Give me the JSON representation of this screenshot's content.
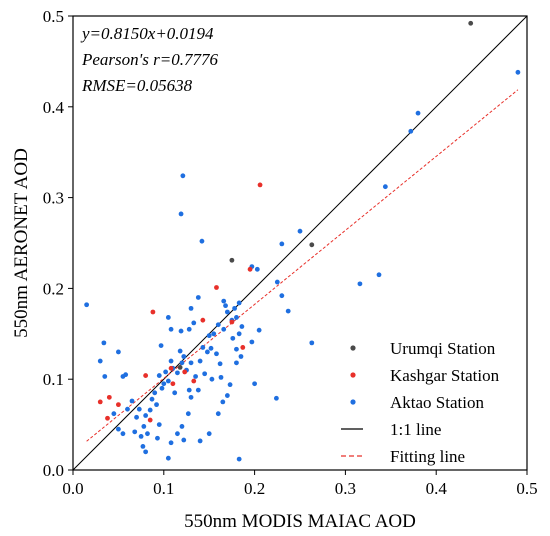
{
  "chart_data": {
    "type": "scatter",
    "xlabel": "550nm MODIS MAIAC AOD",
    "ylabel": "550nm AERONET  AOD",
    "xlim": [
      0,
      0.5
    ],
    "ylim": [
      0,
      0.5
    ],
    "xticks": [
      "0.0",
      "0.1",
      "0.2",
      "0.3",
      "0.4",
      "0.5"
    ],
    "yticks": [
      "0.0",
      "0.1",
      "0.2",
      "0.3",
      "0.4",
      "0.5"
    ],
    "grid": false,
    "legend_position": "bottom-right",
    "annotations": [
      "y=0.8150x+0.0194",
      "Pearson's r=0.7776",
      "RMSE=0.05638"
    ],
    "fit": {
      "slope": 0.815,
      "intercept": 0.0194,
      "x_range": [
        0.015,
        0.49
      ],
      "color": "#e8302a",
      "label": "Fitting line"
    },
    "one_to_one": {
      "label": "1:1 line",
      "color": "#000000"
    },
    "series": [
      {
        "name": "Urumqi Station",
        "color": "#4a4a4a",
        "points": [
          [
            0.438,
            0.492
          ],
          [
            0.175,
            0.231
          ],
          [
            0.263,
            0.248
          ],
          [
            0.118,
            0.113
          ]
        ]
      },
      {
        "name": "Kashgar Station",
        "color": "#e8302a",
        "points": [
          [
            0.206,
            0.314
          ],
          [
            0.195,
            0.221
          ],
          [
            0.158,
            0.201
          ],
          [
            0.175,
            0.163
          ],
          [
            0.143,
            0.165
          ],
          [
            0.088,
            0.174
          ],
          [
            0.187,
            0.135
          ],
          [
            0.108,
            0.112
          ],
          [
            0.123,
            0.108
          ],
          [
            0.08,
            0.104
          ],
          [
            0.03,
            0.075
          ],
          [
            0.04,
            0.08
          ],
          [
            0.05,
            0.072
          ],
          [
            0.038,
            0.057
          ],
          [
            0.085,
            0.055
          ],
          [
            0.133,
            0.098
          ],
          [
            0.11,
            0.095
          ]
        ]
      },
      {
        "name": "Aktao Station",
        "color": "#1f6fe0",
        "points": [
          [
            0.49,
            0.438
          ],
          [
            0.38,
            0.393
          ],
          [
            0.372,
            0.373
          ],
          [
            0.344,
            0.312
          ],
          [
            0.337,
            0.215
          ],
          [
            0.316,
            0.205
          ],
          [
            0.263,
            0.14
          ],
          [
            0.224,
            0.079
          ],
          [
            0.25,
            0.263
          ],
          [
            0.23,
            0.249
          ],
          [
            0.225,
            0.207
          ],
          [
            0.23,
            0.192
          ],
          [
            0.237,
            0.175
          ],
          [
            0.197,
            0.224
          ],
          [
            0.203,
            0.221
          ],
          [
            0.205,
            0.154
          ],
          [
            0.197,
            0.141
          ],
          [
            0.183,
            0.184
          ],
          [
            0.178,
            0.178
          ],
          [
            0.166,
            0.186
          ],
          [
            0.17,
            0.174
          ],
          [
            0.168,
            0.181
          ],
          [
            0.18,
            0.168
          ],
          [
            0.186,
            0.158
          ],
          [
            0.175,
            0.165
          ],
          [
            0.183,
            0.15
          ],
          [
            0.18,
            0.133
          ],
          [
            0.176,
            0.145
          ],
          [
            0.166,
            0.155
          ],
          [
            0.16,
            0.16
          ],
          [
            0.155,
            0.15
          ],
          [
            0.15,
            0.148
          ],
          [
            0.148,
            0.13
          ],
          [
            0.143,
            0.135
          ],
          [
            0.14,
            0.12
          ],
          [
            0.145,
            0.106
          ],
          [
            0.135,
            0.103
          ],
          [
            0.13,
            0.118
          ],
          [
            0.125,
            0.11
          ],
          [
            0.122,
            0.125
          ],
          [
            0.12,
            0.118
          ],
          [
            0.115,
            0.107
          ],
          [
            0.11,
            0.112
          ],
          [
            0.108,
            0.12
          ],
          [
            0.105,
            0.098
          ],
          [
            0.1,
            0.095
          ],
          [
            0.102,
            0.108
          ],
          [
            0.098,
            0.09
          ],
          [
            0.095,
            0.104
          ],
          [
            0.09,
            0.085
          ],
          [
            0.087,
            0.078
          ],
          [
            0.092,
            0.072
          ],
          [
            0.085,
            0.066
          ],
          [
            0.08,
            0.06
          ],
          [
            0.078,
            0.048
          ],
          [
            0.073,
            0.067
          ],
          [
            0.07,
            0.058
          ],
          [
            0.082,
            0.04
          ],
          [
            0.075,
            0.037
          ],
          [
            0.068,
            0.042
          ],
          [
            0.077,
            0.026
          ],
          [
            0.08,
            0.02
          ],
          [
            0.065,
            0.076
          ],
          [
            0.06,
            0.067
          ],
          [
            0.055,
            0.04
          ],
          [
            0.05,
            0.045
          ],
          [
            0.045,
            0.062
          ],
          [
            0.058,
            0.105
          ],
          [
            0.055,
            0.103
          ],
          [
            0.05,
            0.13
          ],
          [
            0.034,
            0.14
          ],
          [
            0.03,
            0.12
          ],
          [
            0.015,
            0.182
          ],
          [
            0.035,
            0.103
          ],
          [
            0.097,
            0.137
          ],
          [
            0.108,
            0.155
          ],
          [
            0.105,
            0.168
          ],
          [
            0.119,
            0.153
          ],
          [
            0.118,
            0.131
          ],
          [
            0.128,
            0.155
          ],
          [
            0.133,
            0.162
          ],
          [
            0.138,
            0.19
          ],
          [
            0.142,
            0.252
          ],
          [
            0.119,
            0.282
          ],
          [
            0.121,
            0.324
          ],
          [
            0.13,
            0.178
          ],
          [
            0.152,
            0.134
          ],
          [
            0.158,
            0.128
          ],
          [
            0.162,
            0.117
          ],
          [
            0.153,
            0.1
          ],
          [
            0.138,
            0.088
          ],
          [
            0.13,
            0.08
          ],
          [
            0.127,
            0.062
          ],
          [
            0.12,
            0.048
          ],
          [
            0.115,
            0.04
          ],
          [
            0.108,
            0.03
          ],
          [
            0.14,
            0.032
          ],
          [
            0.15,
            0.04
          ],
          [
            0.16,
            0.062
          ],
          [
            0.165,
            0.075
          ],
          [
            0.17,
            0.082
          ],
          [
            0.173,
            0.094
          ],
          [
            0.163,
            0.102
          ],
          [
            0.18,
            0.118
          ],
          [
            0.185,
            0.125
          ],
          [
            0.183,
            0.012
          ],
          [
            0.105,
            0.013
          ],
          [
            0.122,
            0.033
          ],
          [
            0.095,
            0.05
          ],
          [
            0.093,
            0.035
          ],
          [
            0.112,
            0.085
          ],
          [
            0.128,
            0.088
          ],
          [
            0.2,
            0.095
          ]
        ]
      }
    ]
  }
}
